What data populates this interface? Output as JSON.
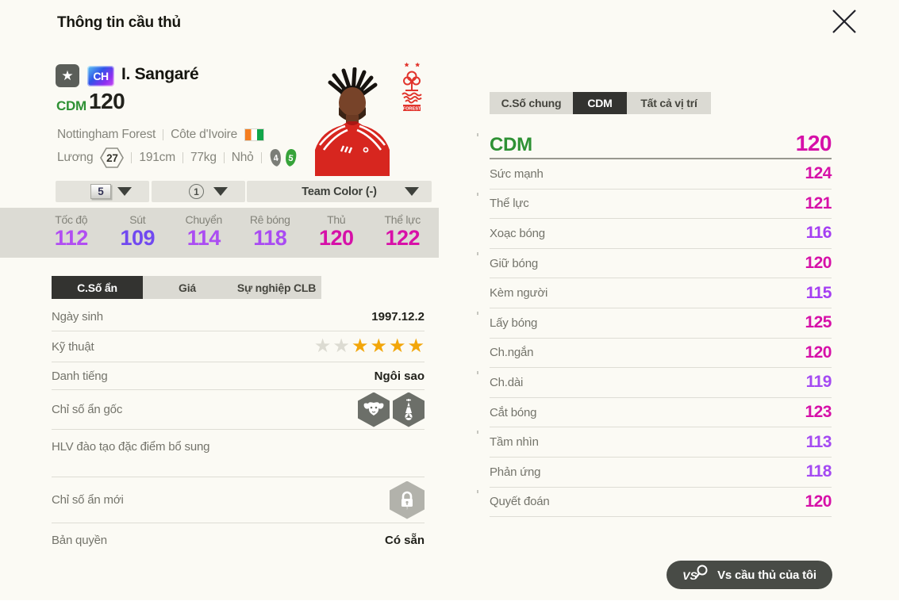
{
  "window": {
    "title": "Thông tin cầu thủ"
  },
  "player": {
    "favorite_icon": "★",
    "class_badge": "CH",
    "name": "I. Sangaré",
    "position": "CDM",
    "position_color": "#2e9134",
    "ovr": "120",
    "club": "Nottingham Forest",
    "nation": "Côte d'Ivoire",
    "salary_label": "Lương",
    "salary": "27",
    "height": "191cm",
    "weight": "77kg",
    "body": "Nhỏ",
    "boot_left": "4",
    "boot_right": "5",
    "crest_text": "FOREST"
  },
  "dropdowns": [
    {
      "value": "5"
    },
    {
      "value": "1"
    },
    {
      "value": "Team Color (-)"
    }
  ],
  "main_stats": [
    {
      "label": "Tốc độ",
      "value": "112",
      "color": "#b14df2"
    },
    {
      "label": "Sút",
      "value": "109",
      "color": "#7149f0"
    },
    {
      "label": "Chuyển",
      "value": "114",
      "color": "#ab4df2"
    },
    {
      "label": "Rê bóng",
      "value": "118",
      "color": "#a94bf2"
    },
    {
      "label": "Thủ",
      "value": "120",
      "color": "#d610a8"
    },
    {
      "label": "Thể lực",
      "value": "122",
      "color": "#d810a8"
    }
  ],
  "left_tabs": [
    {
      "label": "C.Số ẩn",
      "active": true
    },
    {
      "label": "Giá",
      "active": false
    },
    {
      "label": "Sự nghiệp CLB",
      "active": false
    }
  ],
  "info": {
    "birth_label": "Ngày sinh",
    "birth_value": "1997.12.2",
    "skill_label": "Kỹ thuật",
    "skill_stars": [
      "empty",
      "empty",
      "filled",
      "filled",
      "filled",
      "filled"
    ],
    "fame_label": "Danh tiếng",
    "fame_value": "Ngôi sao",
    "hidden_origin_label": "Chỉ số ẩn gốc",
    "hidden_origin_icons": [
      "buffalo-trait-icon",
      "lighthouse-trait-icon"
    ],
    "coach_label": "HLV đào tạo đặc điểm bổ sung",
    "hidden_new_label": "Chỉ số ẩn mới",
    "license_label": "Bản quyền",
    "license_value": "Có sẵn"
  },
  "right_tabs": [
    {
      "label": "C.Số chung",
      "active": false
    },
    {
      "label": "CDM",
      "active": true
    },
    {
      "label": "Tất cả vị trí",
      "active": false
    }
  ],
  "position_detail": {
    "position": "CDM",
    "value": "120",
    "position_color": "#2e9134",
    "value_color": "#d610a8"
  },
  "detail_stats": [
    {
      "label": "Sức mạnh",
      "value": "124",
      "color": "#d610a8"
    },
    {
      "label": "Thể lực",
      "value": "121",
      "color": "#d610a8"
    },
    {
      "label": "Xoạc bóng",
      "value": "116",
      "color": "#a43ef2"
    },
    {
      "label": "Giữ bóng",
      "value": "120",
      "color": "#d610a8"
    },
    {
      "label": "Kèm người",
      "value": "115",
      "color": "#a43ef2"
    },
    {
      "label": "Lấy bóng",
      "value": "125",
      "color": "#d610a8"
    },
    {
      "label": "Ch.ngắn",
      "value": "120",
      "color": "#d610a8"
    },
    {
      "label": "Ch.dài",
      "value": "119",
      "color": "#a44af2"
    },
    {
      "label": "Cắt bóng",
      "value": "123",
      "color": "#d610a8"
    },
    {
      "label": "Tầm nhìn",
      "value": "113",
      "color": "#a44af2"
    },
    {
      "label": "Phản ứng",
      "value": "118",
      "color": "#a44af2"
    },
    {
      "label": "Quyết đoán",
      "value": "120",
      "color": "#d610a8"
    }
  ],
  "vs_button": {
    "icon_text": "VS",
    "label": "Vs cầu thủ của tôi"
  }
}
